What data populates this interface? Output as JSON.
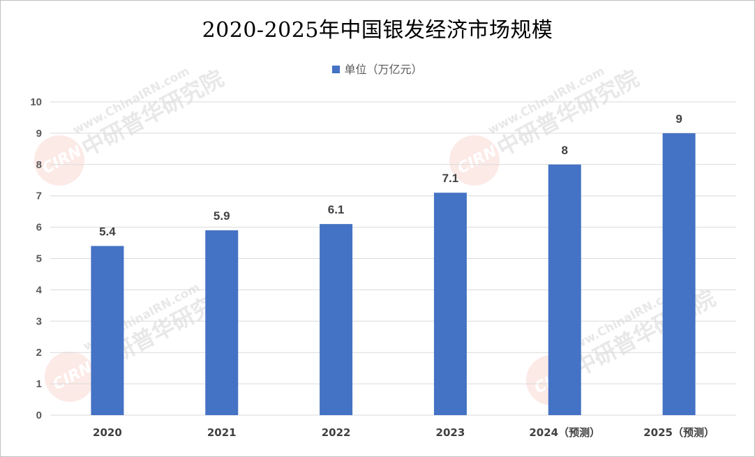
{
  "chart_data": {
    "type": "bar",
    "title": "2020-2025年中国银发经济市场规模",
    "categories": [
      "2020",
      "2021",
      "2022",
      "2023",
      "2024（预测）",
      "2025（预测）"
    ],
    "series": [
      {
        "name": "单位（万亿元）",
        "values": [
          5.4,
          5.9,
          6.1,
          7.1,
          8,
          9
        ],
        "color": "#4472c4"
      }
    ],
    "data_labels": [
      "5.4",
      "5.9",
      "6.1",
      "7.1",
      "8",
      "9"
    ],
    "ylim": [
      0,
      10
    ],
    "yticks": [
      "0",
      "1",
      "2",
      "3",
      "4",
      "5",
      "6",
      "7",
      "8",
      "9",
      "10"
    ],
    "xlabel": "",
    "ylabel": "",
    "grid": true,
    "legend_position": "top-center"
  },
  "watermark": {
    "lines": [
      "www.ChinaIRN.com",
      "中研普华研究院"
    ],
    "logo": "CIRN"
  }
}
